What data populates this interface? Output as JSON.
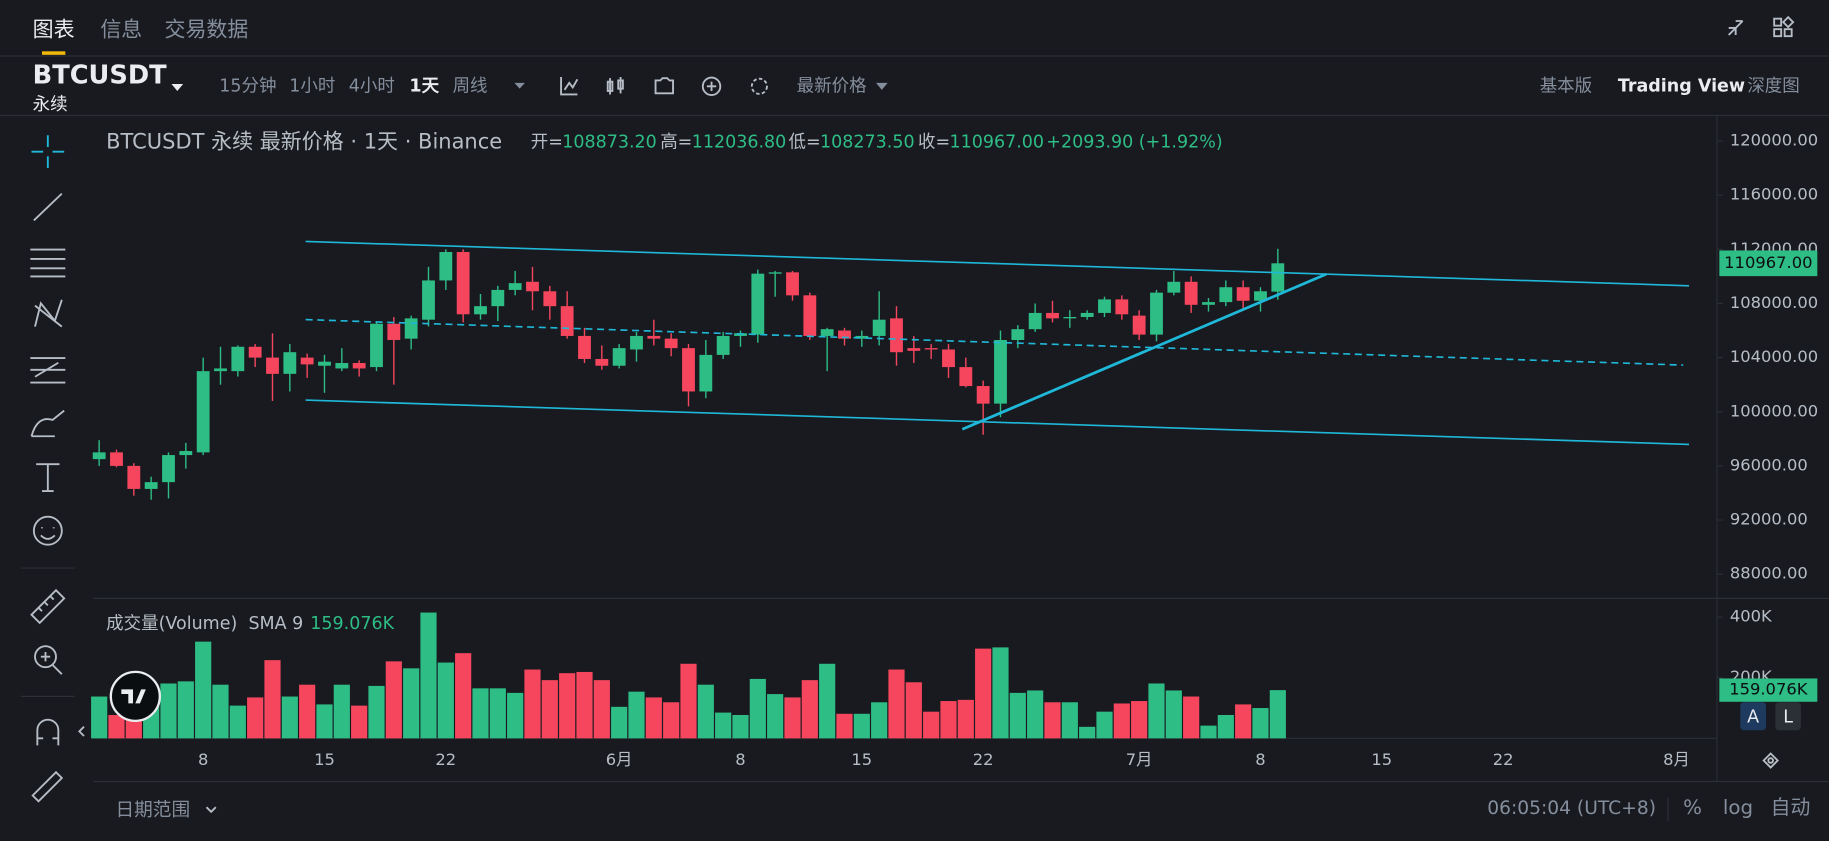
{
  "tabs": [
    "图表",
    "信息",
    "交易数据"
  ],
  "symbol": "BTCUSDT",
  "contract": "永续",
  "intervals": [
    "15分钟",
    "1小时",
    "4小时",
    "1天",
    "周线"
  ],
  "price_type": "最新价格",
  "views": [
    "基本版",
    "Trading View",
    "深度图"
  ],
  "bottom": {
    "date_range": "日期范围",
    "time": "06:05:04 (UTC+8)",
    "percent": "%",
    "log": "log",
    "auto": "自动",
    "a": "A",
    "l": "L"
  },
  "chart_data": [
    {
      "type": "candlestick",
      "title": "BTCUSDT 永续 最新价格 · 1天 · Binance",
      "ohlc": [
        {
          "name": "开=",
          "label": "108873.20"
        },
        {
          "name": "高=",
          "label": "112036.80"
        },
        {
          "name": "低=",
          "label": "108273.50"
        },
        {
          "name": "收=",
          "label": "110967.00"
        }
      ],
      "change": "+2093.90 (+1.92%)",
      "up_color": "#2ebd85",
      "down_color": "#f6465d",
      "open": [
        96500,
        97000,
        96000,
        94300,
        94800,
        96800,
        97000,
        103000,
        103000,
        104800,
        104000,
        102800,
        104000,
        103400,
        103200,
        103600,
        103300,
        106500,
        105400,
        106800,
        109700,
        111800,
        107200,
        107800,
        109000,
        109600,
        108900,
        107800,
        105600,
        103900,
        103400,
        104600,
        105600,
        105400,
        104700,
        101500,
        104200,
        105600,
        105700,
        110200,
        110300,
        108600,
        105600,
        106000,
        105400,
        105600,
        106900,
        104700,
        104700,
        104600,
        103300,
        101900,
        100600,
        105300,
        106100,
        107300,
        106900,
        107000,
        107300,
        108300,
        107100,
        105700,
        108800,
        109600,
        107900,
        108100,
        109200,
        108200,
        108873.2
      ],
      "high": [
        97900,
        97200,
        96200,
        95200,
        97000,
        97700,
        104000,
        104800,
        104900,
        105000,
        105800,
        105000,
        104300,
        104200,
        104700,
        103800,
        106700,
        107000,
        107100,
        110700,
        112000,
        112000,
        108700,
        109300,
        110400,
        110700,
        109300,
        108900,
        106200,
        104900,
        105000,
        105900,
        106800,
        105800,
        105000,
        105300,
        105900,
        106000,
        110500,
        110400,
        110400,
        108800,
        106200,
        106200,
        106000,
        108900,
        107800,
        105600,
        105000,
        105000,
        104000,
        102300,
        106000,
        106400,
        108000,
        108200,
        107500,
        107500,
        108500,
        108600,
        107500,
        109000,
        110400,
        110000,
        108400,
        109700,
        109700,
        109200,
        112036.8
      ],
      "low": [
        96000,
        95900,
        93800,
        93500,
        93600,
        95800,
        96800,
        102000,
        102600,
        103300,
        100800,
        101500,
        102500,
        101400,
        103000,
        102600,
        103000,
        102000,
        104600,
        106300,
        109000,
        106600,
        106800,
        106700,
        108600,
        107500,
        106800,
        105400,
        103600,
        103100,
        103200,
        103700,
        104900,
        104100,
        100400,
        101000,
        103900,
        104800,
        105100,
        108500,
        108200,
        105300,
        103000,
        104900,
        104800,
        104900,
        103400,
        103600,
        103900,
        102500,
        101800,
        98300,
        99600,
        104700,
        105900,
        106600,
        106200,
        106800,
        107000,
        106800,
        105300,
        105200,
        108600,
        107300,
        107400,
        107800,
        107600,
        107400,
        108273.5
      ],
      "close": [
        97000,
        96000,
        94300,
        94800,
        96800,
        97100,
        103000,
        103200,
        104800,
        104000,
        102800,
        104400,
        103500,
        103700,
        103600,
        103200,
        106500,
        105300,
        106900,
        109700,
        111800,
        107200,
        107800,
        109000,
        109500,
        108900,
        107800,
        105600,
        103900,
        103400,
        104700,
        105600,
        105400,
        104700,
        101500,
        104200,
        105600,
        105800,
        110200,
        110300,
        108600,
        105600,
        106100,
        105400,
        105600,
        106800,
        104400,
        104500,
        104600,
        103300,
        101900,
        100600,
        105300,
        106100,
        107300,
        106900,
        107000,
        107300,
        108300,
        107200,
        105700,
        108800,
        109600,
        107900,
        108100,
        109200,
        108200,
        108900,
        110967
      ],
      "x_labels": [
        null,
        null,
        null,
        null,
        null,
        null,
        "8",
        null,
        null,
        null,
        null,
        null,
        null,
        "15",
        null,
        null,
        null,
        null,
        null,
        null,
        "22",
        null,
        null,
        null,
        null,
        null,
        null,
        null,
        null,
        null,
        "6月",
        null,
        null,
        null,
        null,
        null,
        null,
        "8",
        null,
        null,
        null,
        null,
        null,
        null,
        "15",
        null,
        null,
        null,
        null,
        null,
        null,
        "22",
        null,
        null,
        null,
        null,
        null,
        null,
        null,
        null,
        "7月",
        null,
        null,
        null,
        null,
        null,
        null,
        "8",
        null,
        null,
        null,
        null,
        null,
        null,
        "15",
        null,
        null,
        null,
        null,
        null,
        null,
        "22",
        null,
        null,
        null,
        null,
        null,
        null,
        null,
        null,
        null,
        "8月"
      ],
      "ylim": [
        86300,
        121800
      ],
      "yticks": [
        {
          "value": 88000,
          "label": "88000.00"
        },
        {
          "value": 92000,
          "label": "92000.00"
        },
        {
          "value": 96000,
          "label": "96000.00"
        },
        {
          "value": 100000,
          "label": "100000.00"
        },
        {
          "value": 104000,
          "label": "104000.00"
        },
        {
          "value": 108000,
          "label": "108000.00"
        },
        {
          "value": 112000,
          "label": "112000.00"
        },
        {
          "value": 116000,
          "label": "116000.00"
        },
        {
          "value": 120000,
          "label": "120000.00"
        }
      ],
      "last_price": {
        "value": 110967,
        "label": "110967.00"
      }
    },
    {
      "type": "bar",
      "title": "成交量(Volume)",
      "indicator": "SMA 9",
      "indicator_value": "159.076K",
      "values": [
        138,
        77,
        108,
        142,
        181,
        188,
        319,
        177,
        108,
        135,
        258,
        138,
        177,
        112,
        177,
        108,
        173,
        254,
        231,
        415,
        250,
        281,
        165,
        165,
        150,
        227,
        192,
        215,
        219,
        192,
        104,
        154,
        135,
        119,
        246,
        177,
        85,
        77,
        196,
        146,
        135,
        192,
        246,
        81,
        81,
        119,
        227,
        185,
        88,
        123,
        127,
        296,
        300,
        150,
        158,
        119,
        119,
        38,
        88,
        115,
        123,
        181,
        158,
        138,
        42,
        77,
        112,
        100,
        159.076
      ],
      "ylim": [
        0,
        454
      ],
      "yticks": [
        {
          "value": 200,
          "label": "200K"
        },
        {
          "value": 400,
          "label": "400K"
        }
      ],
      "last_value": {
        "value": 159.076,
        "label": "159.076K"
      }
    }
  ]
}
